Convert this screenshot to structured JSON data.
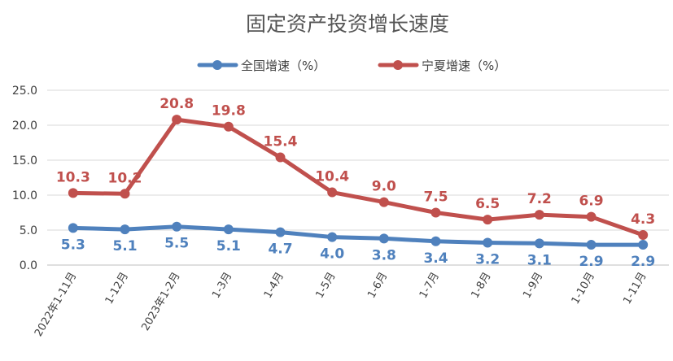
{
  "chart_data": {
    "type": "line",
    "title": "固定资产投资增长速度",
    "categories": [
      "2022年1-11月",
      "1-12月",
      "2023年1-2月",
      "1-3月",
      "1-4月",
      "1-5月",
      "1-6月",
      "1-7月",
      "1-8月",
      "1-9月",
      "1-10月",
      "1-11月"
    ],
    "series": [
      {
        "name": "全国增速（%）",
        "color": "#4F81BD",
        "values": [
          5.3,
          5.1,
          5.5,
          5.1,
          4.7,
          4.0,
          3.8,
          3.4,
          3.2,
          3.1,
          2.9,
          2.9
        ]
      },
      {
        "name": "宁夏增速（%）",
        "color": "#C0504D",
        "values": [
          10.3,
          10.2,
          20.8,
          19.8,
          15.4,
          10.4,
          9.0,
          7.5,
          6.5,
          7.2,
          6.9,
          4.3
        ]
      }
    ],
    "ylim": [
      0,
      25
    ],
    "yticks": [
      "0.0",
      "5.0",
      "10.0",
      "15.0",
      "20.0",
      "25.0"
    ],
    "grid": true,
    "legend_position": "top"
  }
}
